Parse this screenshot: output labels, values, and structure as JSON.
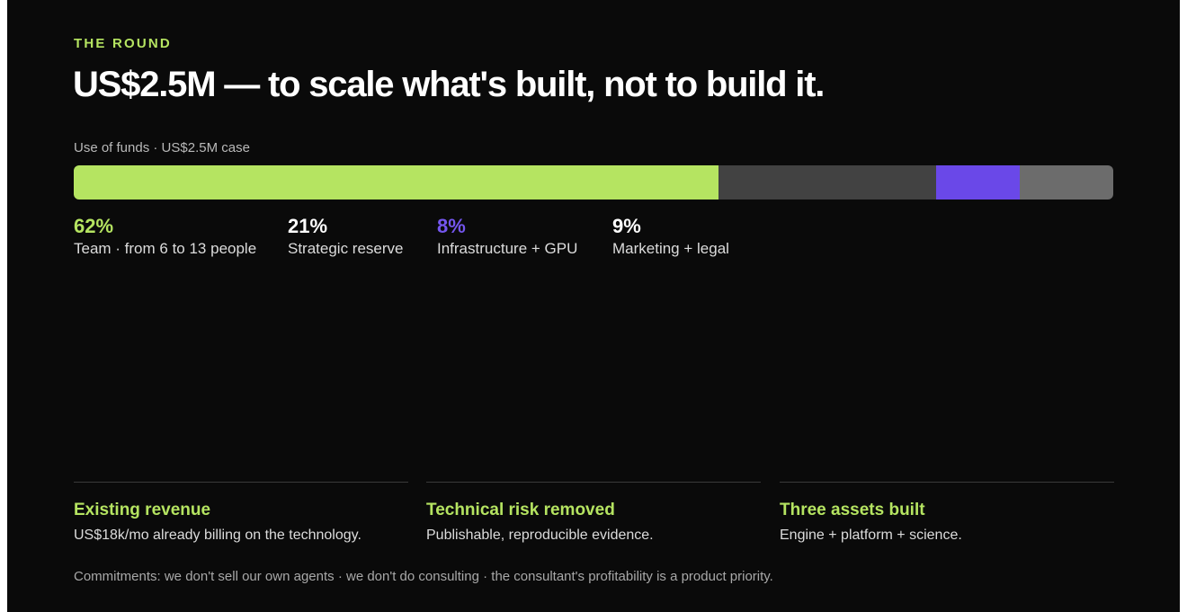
{
  "section_label": "THE ROUND",
  "headline": "US$2.5M — to scale what's built, not to build it.",
  "use_of_funds": {
    "caption": "Use of funds · US$2.5M case",
    "allocations": [
      {
        "percent": "62%",
        "label": "Team · from 6 to 13 people",
        "share": 0.62,
        "color": "#b5e461"
      },
      {
        "percent": "21%",
        "label": "Strategic reserve",
        "share": 0.21,
        "color": "#424242"
      },
      {
        "percent": "8%",
        "label": "Infrastructure + GPU",
        "share": 0.08,
        "color": "#6a48e8"
      },
      {
        "percent": "9%",
        "label": "Marketing + legal",
        "share": 0.09,
        "color": "#6c6c6c"
      }
    ]
  },
  "points": [
    {
      "title": "Existing revenue",
      "description": "US$18k/mo already billing on the technology."
    },
    {
      "title": "Technical risk removed",
      "description": "Publishable, reproducible evidence."
    },
    {
      "title": "Three assets built",
      "description": "Engine + platform + science."
    }
  ],
  "commitments": "Commitments: we don't sell our own agents · we don't do consulting · the consultant's profitability is a product priority.",
  "colors": {
    "accent": "#b5e461",
    "purple": "#6a48e8",
    "background": "#0a0a0a"
  }
}
